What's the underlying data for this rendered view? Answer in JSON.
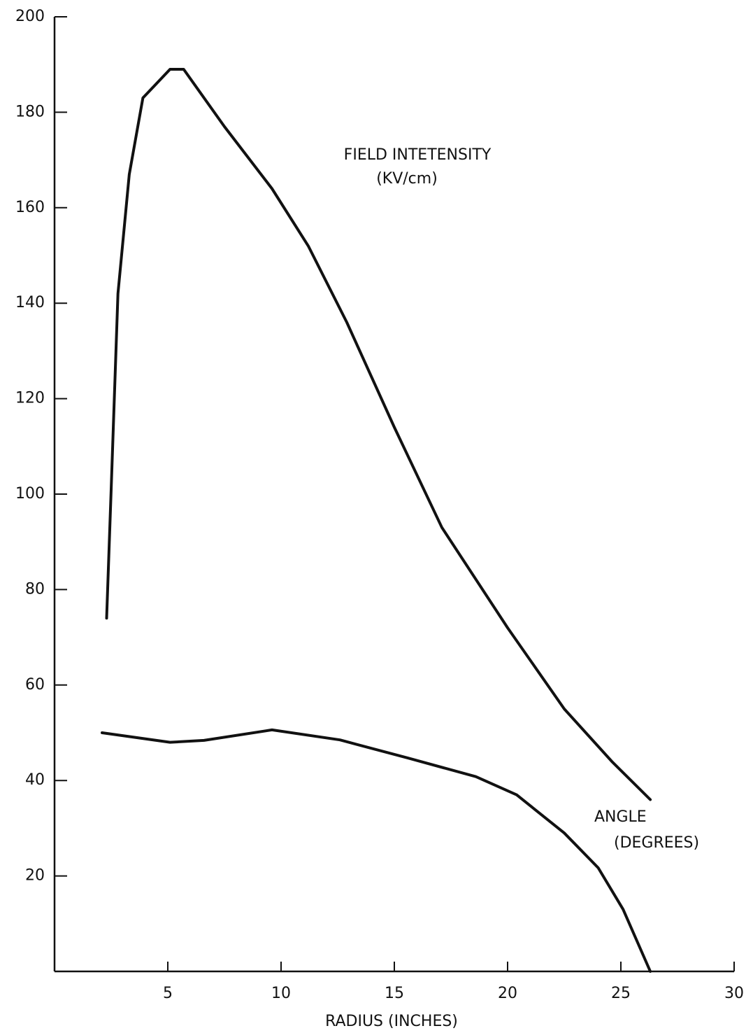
{
  "chart_data": {
    "type": "line",
    "xlabel": "RADIUS (INCHES)",
    "xlim": [
      0,
      30
    ],
    "xticks": [
      5,
      10,
      15,
      20,
      25,
      30
    ],
    "ylim": [
      0,
      200
    ],
    "yticks": [
      20,
      40,
      60,
      80,
      100,
      120,
      140,
      160,
      180,
      200
    ],
    "grid": false,
    "series": [
      {
        "name": "FIELD INTETENSITY",
        "unit": "(KV/cm)",
        "color": "#111111",
        "x": [
          2.3,
          2.5,
          2.8,
          3.3,
          3.9,
          5.1,
          5.7,
          7.5,
          9.6,
          11.2,
          12.9,
          15,
          17.1,
          20,
          22.5,
          24.6,
          26.3
        ],
        "values": [
          74,
          101,
          142,
          167,
          183,
          189,
          189,
          177,
          164,
          152,
          136,
          114,
          93,
          72,
          55,
          44,
          36
        ]
      },
      {
        "name": "ANGLE",
        "unit": "(DEGREES)",
        "color": "#111111",
        "x": [
          2.1,
          5.1,
          6.6,
          9.6,
          12.6,
          15.6,
          18.6,
          20.4,
          22.5,
          24,
          25.1,
          26.3
        ],
        "values": [
          50,
          48,
          48.4,
          50.6,
          48.5,
          44.7,
          40.8,
          37,
          29,
          21.7,
          13,
          0
        ]
      }
    ]
  }
}
